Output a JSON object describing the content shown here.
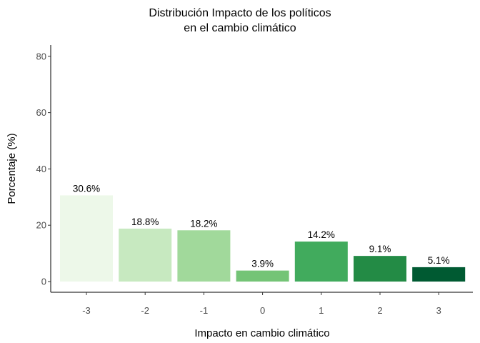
{
  "chart_data": {
    "type": "bar",
    "title_lines": [
      "Distribución Impacto de los políticos",
      "en el cambio climático"
    ],
    "xlabel": "Impacto en cambio climático",
    "ylabel": "Porcentaje (%)",
    "categories": [
      "-3",
      "-2",
      "-1",
      "0",
      "1",
      "2",
      "3"
    ],
    "values": [
      30.6,
      18.8,
      18.2,
      3.9,
      14.2,
      9.1,
      5.1
    ],
    "labels": [
      "30.6%",
      "18.8%",
      "18.2%",
      "3.9%",
      "14.2%",
      "9.1%",
      "5.1%"
    ],
    "colors": [
      "#edf8e9",
      "#c7e9c0",
      "#a1d99b",
      "#74c476",
      "#41ab5d",
      "#238b45",
      "#005a32"
    ],
    "ylim": [
      0,
      84
    ],
    "yticks": [
      0,
      20,
      40,
      60,
      80
    ],
    "grid": false,
    "legend": "none"
  }
}
